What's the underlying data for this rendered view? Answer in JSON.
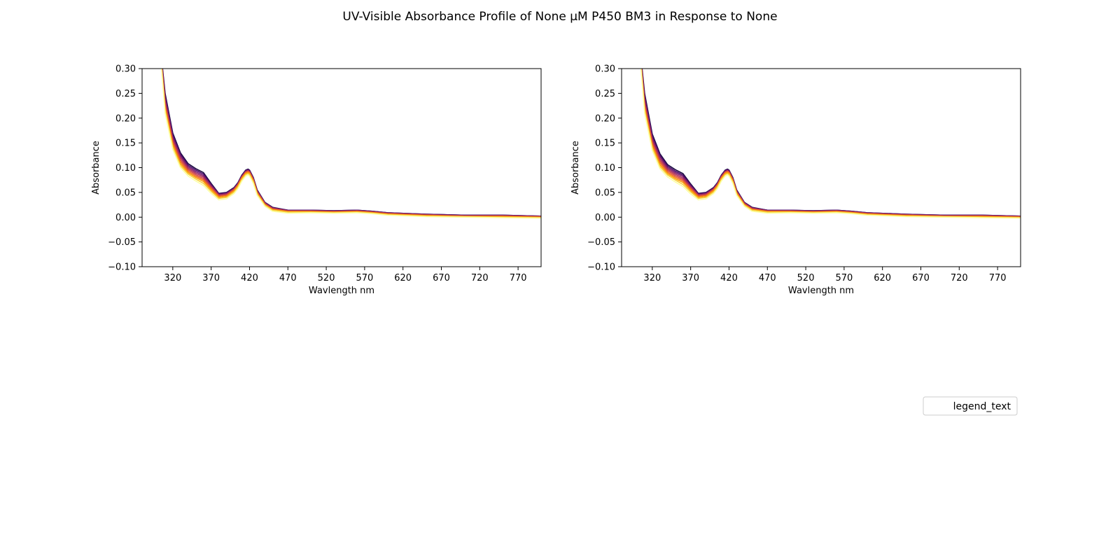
{
  "figure": {
    "suptitle": "UV-Visible Absorbance Profile of None µM P450 BM3 in Response to None",
    "legend": {
      "label": "legend_text",
      "placement": "lower-right"
    }
  },
  "chart_data": [
    {
      "type": "line",
      "xlabel": "Wavlength nm",
      "ylabel": "Absorbance",
      "xlim": [
        280,
        800
      ],
      "ylim": [
        -0.1,
        0.3
      ],
      "xticks": [
        320,
        370,
        420,
        470,
        520,
        570,
        620,
        670,
        720,
        770
      ],
      "yticks": [
        "−0.10",
        "−0.05",
        "0.00",
        "0.05",
        "0.10",
        "0.15",
        "0.20",
        "0.25",
        "0.30"
      ],
      "grid": false,
      "colormap": [
        "#1b0c41",
        "#4a0c6b",
        "#781c6d",
        "#a52c60",
        "#cf4446",
        "#ed6925",
        "#fb9b06",
        "#f7d13d",
        "#fcffa4"
      ],
      "series_count": 9,
      "x": [
        300,
        310,
        320,
        330,
        340,
        350,
        360,
        370,
        380,
        390,
        400,
        405,
        410,
        415,
        418,
        420,
        425,
        430,
        440,
        450,
        470,
        500,
        530,
        560,
        580,
        600,
        650,
        700,
        750,
        800
      ],
      "series": [
        {
          "values": [
            0.4,
            0.25,
            0.17,
            0.13,
            0.108,
            0.098,
            0.09,
            0.068,
            0.048,
            0.05,
            0.06,
            0.07,
            0.085,
            0.095,
            0.097,
            0.095,
            0.08,
            0.055,
            0.03,
            0.02,
            0.014,
            0.014,
            0.013,
            0.014,
            0.012,
            0.009,
            0.006,
            0.004,
            0.004,
            0.002
          ]
        },
        {
          "values": [
            0.4,
            0.245,
            0.166,
            0.127,
            0.105,
            0.095,
            0.087,
            0.066,
            0.047,
            0.049,
            0.059,
            0.069,
            0.084,
            0.094,
            0.096,
            0.094,
            0.079,
            0.054,
            0.029,
            0.019,
            0.014,
            0.014,
            0.013,
            0.014,
            0.012,
            0.009,
            0.006,
            0.004,
            0.004,
            0.002
          ]
        },
        {
          "values": [
            0.4,
            0.24,
            0.162,
            0.124,
            0.102,
            0.092,
            0.084,
            0.064,
            0.046,
            0.048,
            0.058,
            0.068,
            0.083,
            0.093,
            0.095,
            0.093,
            0.078,
            0.053,
            0.029,
            0.019,
            0.013,
            0.013,
            0.012,
            0.013,
            0.011,
            0.008,
            0.005,
            0.003,
            0.003,
            0.002
          ]
        },
        {
          "values": [
            0.4,
            0.235,
            0.158,
            0.12,
            0.099,
            0.089,
            0.081,
            0.062,
            0.045,
            0.047,
            0.057,
            0.067,
            0.082,
            0.092,
            0.094,
            0.092,
            0.077,
            0.052,
            0.028,
            0.018,
            0.013,
            0.013,
            0.012,
            0.013,
            0.011,
            0.008,
            0.005,
            0.003,
            0.003,
            0.001
          ]
        },
        {
          "values": [
            0.4,
            0.23,
            0.154,
            0.116,
            0.096,
            0.086,
            0.078,
            0.06,
            0.043,
            0.045,
            0.056,
            0.066,
            0.081,
            0.091,
            0.093,
            0.091,
            0.076,
            0.051,
            0.027,
            0.017,
            0.012,
            0.012,
            0.011,
            0.012,
            0.01,
            0.007,
            0.004,
            0.002,
            0.002,
            0.001
          ]
        },
        {
          "values": [
            0.4,
            0.225,
            0.15,
            0.112,
            0.093,
            0.083,
            0.075,
            0.058,
            0.042,
            0.044,
            0.055,
            0.065,
            0.08,
            0.09,
            0.092,
            0.09,
            0.075,
            0.05,
            0.026,
            0.016,
            0.012,
            0.012,
            0.011,
            0.012,
            0.01,
            0.007,
            0.004,
            0.002,
            0.002,
            0.0
          ]
        },
        {
          "values": [
            0.4,
            0.22,
            0.146,
            0.108,
            0.09,
            0.08,
            0.072,
            0.055,
            0.04,
            0.042,
            0.053,
            0.063,
            0.078,
            0.088,
            0.09,
            0.088,
            0.073,
            0.048,
            0.025,
            0.015,
            0.011,
            0.011,
            0.01,
            0.011,
            0.009,
            0.006,
            0.003,
            0.001,
            0.001,
            0.0
          ]
        },
        {
          "values": [
            0.4,
            0.215,
            0.142,
            0.104,
            0.087,
            0.077,
            0.068,
            0.052,
            0.038,
            0.04,
            0.051,
            0.061,
            0.076,
            0.086,
            0.088,
            0.086,
            0.071,
            0.046,
            0.024,
            0.014,
            0.01,
            0.01,
            0.009,
            0.01,
            0.008,
            0.005,
            0.002,
            0.001,
            0.0,
            -0.001
          ]
        },
        {
          "values": [
            0.4,
            0.21,
            0.137,
            0.1,
            0.083,
            0.073,
            0.064,
            0.048,
            0.035,
            0.037,
            0.048,
            0.058,
            0.073,
            0.083,
            0.085,
            0.083,
            0.068,
            0.044,
            0.022,
            0.012,
            0.008,
            0.009,
            0.008,
            0.009,
            0.007,
            0.004,
            0.001,
            0.0,
            -0.001,
            -0.002
          ]
        }
      ]
    },
    {
      "type": "line",
      "xlabel": "Wavlength nm",
      "ylabel": "Absorbance",
      "xlim": [
        280,
        800
      ],
      "ylim": [
        -0.1,
        0.3
      ],
      "xticks": [
        320,
        370,
        420,
        470,
        520,
        570,
        620,
        670,
        720,
        770
      ],
      "yticks": [
        "−0.10",
        "−0.05",
        "0.00",
        "0.05",
        "0.10",
        "0.15",
        "0.20",
        "0.25",
        "0.30"
      ],
      "grid": false,
      "colormap": [
        "#1b0c41",
        "#4a0c6b",
        "#781c6d",
        "#a52c60",
        "#cf4446",
        "#ed6925",
        "#fb9b06",
        "#f7d13d",
        "#fcffa4"
      ],
      "series_count": 9,
      "x": [
        300,
        310,
        320,
        330,
        340,
        350,
        360,
        370,
        380,
        390,
        400,
        405,
        410,
        415,
        418,
        420,
        425,
        430,
        440,
        450,
        470,
        500,
        530,
        560,
        580,
        600,
        650,
        700,
        750,
        800
      ],
      "series": [
        {
          "values": [
            0.4,
            0.25,
            0.168,
            0.128,
            0.106,
            0.096,
            0.088,
            0.067,
            0.048,
            0.05,
            0.06,
            0.07,
            0.085,
            0.095,
            0.097,
            0.095,
            0.08,
            0.055,
            0.03,
            0.02,
            0.014,
            0.014,
            0.013,
            0.014,
            0.012,
            0.009,
            0.006,
            0.004,
            0.004,
            0.002
          ]
        },
        {
          "values": [
            0.4,
            0.245,
            0.164,
            0.125,
            0.103,
            0.093,
            0.085,
            0.065,
            0.047,
            0.049,
            0.059,
            0.069,
            0.084,
            0.094,
            0.096,
            0.094,
            0.079,
            0.054,
            0.029,
            0.019,
            0.014,
            0.014,
            0.013,
            0.014,
            0.012,
            0.009,
            0.006,
            0.004,
            0.004,
            0.002
          ]
        },
        {
          "values": [
            0.4,
            0.24,
            0.16,
            0.122,
            0.1,
            0.09,
            0.082,
            0.063,
            0.046,
            0.048,
            0.058,
            0.068,
            0.083,
            0.093,
            0.095,
            0.093,
            0.078,
            0.053,
            0.029,
            0.019,
            0.013,
            0.013,
            0.012,
            0.013,
            0.011,
            0.008,
            0.005,
            0.003,
            0.003,
            0.002
          ]
        },
        {
          "values": [
            0.4,
            0.235,
            0.156,
            0.118,
            0.097,
            0.087,
            0.079,
            0.061,
            0.045,
            0.047,
            0.057,
            0.067,
            0.082,
            0.092,
            0.094,
            0.092,
            0.077,
            0.052,
            0.028,
            0.018,
            0.013,
            0.013,
            0.012,
            0.013,
            0.011,
            0.008,
            0.005,
            0.003,
            0.003,
            0.001
          ]
        },
        {
          "values": [
            0.4,
            0.23,
            0.152,
            0.114,
            0.094,
            0.084,
            0.076,
            0.059,
            0.043,
            0.045,
            0.056,
            0.066,
            0.081,
            0.091,
            0.093,
            0.091,
            0.076,
            0.051,
            0.027,
            0.017,
            0.012,
            0.012,
            0.011,
            0.012,
            0.01,
            0.007,
            0.004,
            0.002,
            0.002,
            0.001
          ]
        },
        {
          "values": [
            0.4,
            0.225,
            0.148,
            0.11,
            0.091,
            0.081,
            0.073,
            0.057,
            0.042,
            0.044,
            0.055,
            0.065,
            0.08,
            0.09,
            0.092,
            0.09,
            0.075,
            0.05,
            0.026,
            0.016,
            0.012,
            0.012,
            0.011,
            0.012,
            0.01,
            0.007,
            0.004,
            0.002,
            0.002,
            0.0
          ]
        },
        {
          "values": [
            0.4,
            0.22,
            0.144,
            0.106,
            0.088,
            0.078,
            0.07,
            0.054,
            0.04,
            0.042,
            0.053,
            0.063,
            0.078,
            0.088,
            0.09,
            0.088,
            0.073,
            0.048,
            0.025,
            0.015,
            0.011,
            0.011,
            0.01,
            0.011,
            0.009,
            0.006,
            0.003,
            0.001,
            0.001,
            0.0
          ]
        },
        {
          "values": [
            0.4,
            0.215,
            0.14,
            0.102,
            0.085,
            0.075,
            0.066,
            0.051,
            0.038,
            0.04,
            0.051,
            0.061,
            0.076,
            0.086,
            0.088,
            0.086,
            0.071,
            0.046,
            0.024,
            0.014,
            0.01,
            0.01,
            0.009,
            0.01,
            0.008,
            0.005,
            0.002,
            0.001,
            0.0,
            -0.001
          ]
        },
        {
          "values": [
            0.4,
            0.21,
            0.135,
            0.098,
            0.081,
            0.071,
            0.062,
            0.047,
            0.035,
            0.037,
            0.048,
            0.058,
            0.073,
            0.083,
            0.085,
            0.083,
            0.068,
            0.044,
            0.022,
            0.012,
            0.008,
            0.009,
            0.008,
            0.009,
            0.007,
            0.004,
            0.001,
            0.0,
            -0.001,
            -0.002
          ]
        }
      ]
    }
  ]
}
